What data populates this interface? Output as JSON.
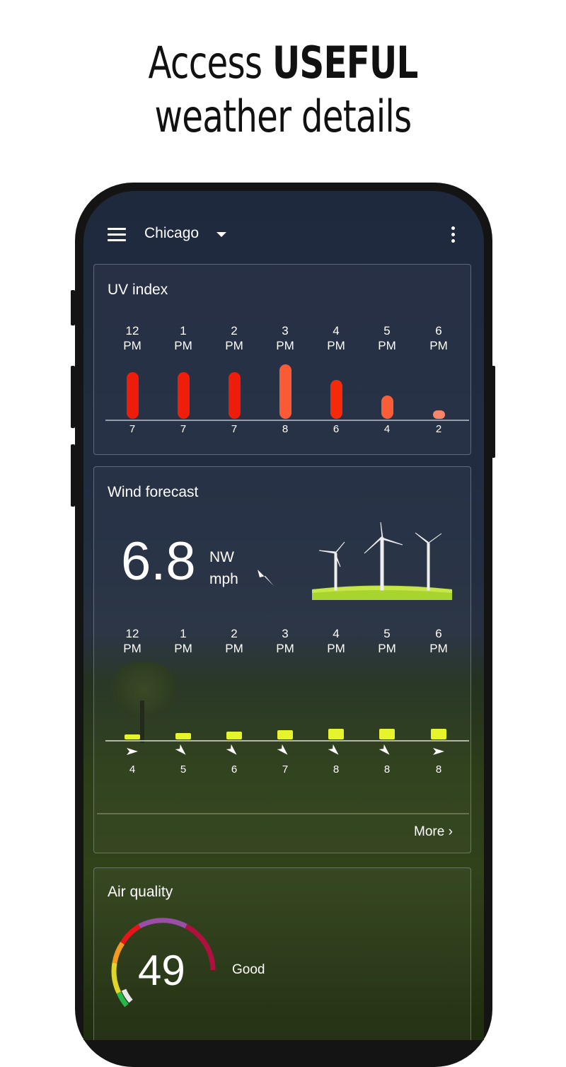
{
  "promo": {
    "line1_light": "Access",
    "line1_bold": "USEFUL",
    "line2": "weather details"
  },
  "topbar": {
    "city": "Chicago",
    "menu_icon": "hamburger-icon",
    "overflow_icon": "more-vert-icon"
  },
  "uv": {
    "title": "UV index",
    "hours": [
      [
        "12",
        "PM"
      ],
      [
        "1",
        "PM"
      ],
      [
        "2",
        "PM"
      ],
      [
        "3",
        "PM"
      ],
      [
        "4",
        "PM"
      ],
      [
        "5",
        "PM"
      ],
      [
        "6",
        "PM"
      ]
    ],
    "values": [
      7,
      7,
      7,
      8,
      6,
      4,
      2
    ],
    "colors": [
      "#ee1c0a",
      "#ef1d0a",
      "#ee1c0a",
      "#fa5b35",
      "#f52a0a",
      "#fb5e36",
      "#f7856a"
    ]
  },
  "wind": {
    "title": "Wind forecast",
    "speed": "6.8",
    "direction": "NW",
    "unit": "mph",
    "hours": [
      [
        "12",
        "PM"
      ],
      [
        "1",
        "PM"
      ],
      [
        "2",
        "PM"
      ],
      [
        "3",
        "PM"
      ],
      [
        "4",
        "PM"
      ],
      [
        "5",
        "PM"
      ],
      [
        "6",
        "PM"
      ]
    ],
    "values": [
      4,
      5,
      6,
      7,
      8,
      8,
      8
    ],
    "arrow_directions_deg": [
      0,
      45,
      45,
      45,
      45,
      45,
      0
    ],
    "bar_color": "#e6f52b",
    "more_label": "More",
    "more_icon": "chevron-right-icon"
  },
  "air": {
    "title": "Air quality",
    "value": "49",
    "label": "Good"
  }
}
